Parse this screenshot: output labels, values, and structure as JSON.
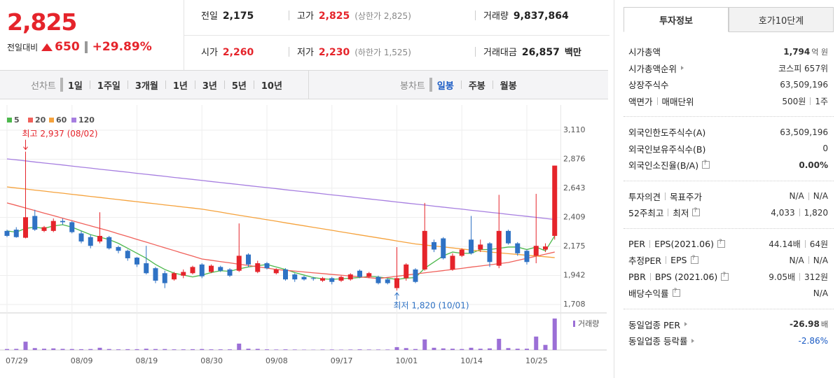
{
  "quote": {
    "price": "2,825",
    "change_label": "전일대비",
    "change": "650",
    "change_rate": "+29.89%",
    "color": "#e5242b"
  },
  "summary": {
    "rows": [
      [
        {
          "label": "전일",
          "value": "2,175"
        },
        {
          "label": "고가",
          "value": "2,825",
          "note": "(상한가 2,825)",
          "color": "#e5242b"
        },
        {
          "label": "거래량",
          "value": "9,837,864"
        }
      ],
      [
        {
          "label": "시가",
          "value": "2,260",
          "color": "#e5242b"
        },
        {
          "label": "저가",
          "value": "2,230",
          "note": "(하한가 1,525)",
          "color": "#e5242b"
        },
        {
          "label": "거래대금",
          "value": "26,857",
          "unit": "백만"
        }
      ]
    ]
  },
  "chart_tabs": {
    "line": {
      "label": "선차트",
      "items": [
        "1일",
        "1주일",
        "3개월",
        "1년",
        "3년",
        "5년",
        "10년"
      ]
    },
    "candle": {
      "label": "봉차트",
      "items": [
        "일봉",
        "주봉",
        "월봉"
      ],
      "selected": 0
    }
  },
  "chart_data": {
    "type": "candlestick",
    "categories": [
      "07/29",
      null,
      null,
      null,
      null,
      null,
      null,
      "08/09",
      null,
      null,
      null,
      null,
      null,
      null,
      "08/19",
      null,
      null,
      null,
      null,
      null,
      null,
      "08/30",
      null,
      null,
      null,
      null,
      null,
      null,
      "09/08",
      null,
      null,
      null,
      null,
      null,
      null,
      "09/17",
      null,
      null,
      null,
      null,
      null,
      null,
      "10/01",
      null,
      null,
      null,
      null,
      null,
      null,
      "10/14",
      null,
      null,
      null,
      null,
      null,
      null,
      "10/25",
      null,
      null,
      null
    ],
    "open": [
      2300,
      2310,
      2245,
      2420,
      2300,
      2300,
      2380,
      2370,
      2280,
      2250,
      2215,
      2250,
      2170,
      2140,
      2085,
      2040,
      2000,
      1960,
      1910,
      1940,
      1960,
      2030,
      1970,
      2010,
      1990,
      1980,
      2110,
      1970,
      2040,
      1960,
      1990,
      1950,
      1930,
      1920,
      1900,
      1920,
      1900,
      1910,
      1980,
      1930,
      1930,
      1910,
      1840,
      1920,
      1990,
      1990,
      2210,
      2240,
      1990,
      2100,
      2230,
      2150,
      2200,
      2020,
      2300,
      2200,
      2140,
      2100,
      2150,
      2260
    ],
    "high": [
      2310,
      2330,
      2937,
      2470,
      2340,
      2400,
      2400,
      2380,
      2300,
      2270,
      2450,
      2260,
      2180,
      2150,
      2090,
      2180,
      2010,
      1980,
      1970,
      1990,
      2020,
      2040,
      2030,
      2020,
      2000,
      2360,
      2120,
      2060,
      2050,
      2000,
      2000,
      1960,
      1940,
      1930,
      1930,
      1930,
      1940,
      1960,
      1990,
      1970,
      1940,
      1920,
      2170,
      2040,
      2000,
      2525,
      2230,
      2250,
      2120,
      2160,
      2420,
      2230,
      2210,
      2590,
      2310,
      2210,
      2150,
      2598,
      2200,
      2825
    ],
    "low": [
      2250,
      2245,
      2240,
      2300,
      2290,
      2290,
      2350,
      2280,
      2200,
      2160,
      2200,
      2150,
      2120,
      2060,
      2010,
      1950,
      1880,
      1840,
      1900,
      1920,
      1950,
      1920,
      1960,
      1970,
      1930,
      1970,
      2010,
      1960,
      1990,
      1950,
      1900,
      1890,
      1900,
      1900,
      1890,
      1870,
      1890,
      1900,
      1920,
      1920,
      1870,
      1870,
      1820,
      1900,
      1880,
      1980,
      2130,
      2070,
      1980,
      2090,
      2110,
      2130,
      2010,
      2000,
      2190,
      2100,
      2030,
      2040,
      2130,
      2230
    ],
    "close": [
      2260,
      2250,
      2410,
      2310,
      2330,
      2380,
      2370,
      2290,
      2215,
      2180,
      2260,
      2160,
      2140,
      2080,
      2030,
      1960,
      1900,
      1880,
      1960,
      1970,
      2010,
      1935,
      2020,
      1980,
      1940,
      2100,
      2030,
      2040,
      2000,
      1990,
      1910,
      1910,
      1910,
      1915,
      1920,
      1890,
      1930,
      1950,
      1930,
      1960,
      1880,
      1880,
      1920,
      2030,
      1890,
      2300,
      2150,
      2080,
      2100,
      2150,
      2120,
      2190,
      2050,
      2300,
      2200,
      2120,
      2050,
      2180,
      2175,
      2825
    ],
    "up_color": "#e5242b",
    "down_color": "#2f72c4",
    "ylim": [
      1652,
      3256
    ],
    "yticks": [
      {
        "value": 3110,
        "label": "3,110"
      },
      {
        "value": 2876,
        "label": "2,876"
      },
      {
        "value": 2643,
        "label": "2,643"
      },
      {
        "value": 2409,
        "label": "2,409"
      },
      {
        "value": 2175,
        "label": "2,175"
      },
      {
        "value": 1942,
        "label": "1,942"
      },
      {
        "value": 1708,
        "label": "1,708"
      }
    ],
    "grid": true,
    "series": [
      {
        "name": "5",
        "color": "#4cb84c",
        "values": [
          2300,
          2290,
          2320,
          2330,
          2320,
          2340,
          2350,
          2330,
          2300,
          2270,
          2250,
          2230,
          2200,
          2160,
          2120,
          2080,
          2030,
          1990,
          1960,
          1945,
          1930,
          1945,
          1965,
          1980,
          1975,
          1995,
          2010,
          2020,
          2030,
          2010,
          1990,
          1965,
          1945,
          1925,
          1915,
          1910,
          1915,
          1920,
          1925,
          1935,
          1930,
          1920,
          1910,
          1920,
          1925,
          2000,
          2050,
          2100,
          2130,
          2120,
          2120,
          2150,
          2150,
          2160,
          2170,
          2170,
          2150,
          2170,
          2140,
          2260
        ]
      },
      {
        "name": "20",
        "color": "#f0605a",
        "values": [
          2525,
          2505,
          2484,
          2464,
          2443,
          2423,
          2402,
          2382,
          2361,
          2341,
          2320,
          2300,
          2277,
          2255,
          2232,
          2210,
          2187,
          2164,
          2142,
          2119,
          2097,
          2074,
          2064,
          2053,
          2043,
          2032,
          2022,
          2011,
          2001,
          1990,
          1983,
          1977,
          1970,
          1963,
          1957,
          1950,
          1944,
          1937,
          1930,
          1924,
          1917,
          1926,
          1935,
          1945,
          1954,
          1963,
          1972,
          1981,
          1990,
          1999,
          2009,
          2018,
          2027,
          2037,
          2046,
          2063,
          2080,
          2096,
          2113,
          2130
        ]
      },
      {
        "name": "60",
        "color": "#f5a23c",
        "values": [
          2654,
          2645,
          2637,
          2628,
          2620,
          2611,
          2603,
          2594,
          2586,
          2577,
          2569,
          2560,
          2552,
          2543,
          2535,
          2526,
          2518,
          2509,
          2501,
          2492,
          2484,
          2475,
          2463,
          2451,
          2438,
          2426,
          2414,
          2402,
          2390,
          2378,
          2365,
          2353,
          2341,
          2329,
          2317,
          2305,
          2292,
          2280,
          2268,
          2256,
          2244,
          2232,
          2219,
          2207,
          2195,
          2187,
          2179,
          2171,
          2163,
          2155,
          2146,
          2138,
          2130,
          2124,
          2117,
          2111,
          2104,
          2098,
          2092,
          2085
        ]
      },
      {
        "name": "120",
        "color": "#a67ee0",
        "values": [
          2879,
          2871,
          2863,
          2854,
          2846,
          2838,
          2830,
          2821,
          2813,
          2805,
          2796,
          2788,
          2780,
          2772,
          2763,
          2755,
          2747,
          2739,
          2730,
          2722,
          2714,
          2706,
          2697,
          2689,
          2681,
          2673,
          2664,
          2656,
          2648,
          2640,
          2631,
          2623,
          2615,
          2607,
          2598,
          2590,
          2582,
          2574,
          2565,
          2557,
          2549,
          2541,
          2532,
          2524,
          2516,
          2508,
          2499,
          2491,
          2483,
          2475,
          2466,
          2458,
          2450,
          2442,
          2433,
          2425,
          2417,
          2409,
          2400,
          2392
        ]
      }
    ],
    "volume": {
      "name": "거래량",
      "color": "#9b6fd6",
      "ylim": [
        0,
        10500000
      ],
      "values": [
        300000,
        350000,
        2600000,
        600000,
        400000,
        500000,
        350000,
        300000,
        250000,
        300000,
        700000,
        300000,
        200000,
        250000,
        250000,
        400000,
        300000,
        300000,
        200000,
        200000,
        250000,
        300000,
        200000,
        200000,
        200000,
        2000000,
        400000,
        350000,
        200000,
        150000,
        200000,
        150000,
        120000,
        100000,
        150000,
        150000,
        120000,
        150000,
        200000,
        150000,
        150000,
        150000,
        900000,
        600000,
        300000,
        3300000,
        700000,
        500000,
        400000,
        300000,
        700000,
        400000,
        500000,
        3500000,
        600000,
        400000,
        400000,
        4200000,
        1600000,
        9837864
      ]
    },
    "annotations": [
      {
        "text": "최고 2,937 (08/02)",
        "value": 2937,
        "field": "high",
        "color": "#e5242b"
      },
      {
        "text": "최저 1,820 (10/01)",
        "value": 1820,
        "field": "low",
        "color": "#2f72c4"
      }
    ]
  },
  "info_panel": {
    "tabs": [
      "투자정보",
      "호가10단계"
    ],
    "selected": 0,
    "groups": [
      [
        {
          "labels": [
            "시가총액"
          ],
          "values": [
            {
              "text": "1,794",
              "unit": "억 원"
            }
          ],
          "bold": true
        },
        {
          "labels": [
            "시가총액순위"
          ],
          "arrow": true,
          "values": [
            "코스피 657위"
          ]
        },
        {
          "labels": [
            "상장주식수"
          ],
          "values": [
            "63,509,196"
          ]
        },
        {
          "labels": [
            "액면가",
            "매매단위"
          ],
          "values": [
            "500원",
            "1주"
          ]
        }
      ],
      [
        {
          "labels": [
            "외국인한도주식수(A)"
          ],
          "values": [
            "63,509,196"
          ]
        },
        {
          "labels": [
            "외국인보유주식수(B)"
          ],
          "values": [
            "0"
          ]
        },
        {
          "labels": [
            "외국인소진율(B/A)"
          ],
          "help": true,
          "values": [
            "0.00%"
          ],
          "bold": true
        }
      ],
      [
        {
          "labels": [
            "투자의견",
            "목표주가"
          ],
          "values": [
            "N/A",
            "N/A"
          ]
        },
        {
          "labels": [
            "52주최고",
            "최저"
          ],
          "help": true,
          "values": [
            "4,033",
            "1,820"
          ]
        }
      ],
      [
        {
          "labels": [
            "PER",
            "EPS(2021.06)"
          ],
          "help": true,
          "values": [
            "44.14배",
            "64원"
          ]
        },
        {
          "labels": [
            "추정PER",
            "EPS"
          ],
          "help": true,
          "values": [
            "N/A",
            "N/A"
          ]
        },
        {
          "labels": [
            "PBR",
            "BPS (2021.06)"
          ],
          "help": true,
          "values": [
            "9.05배",
            "312원"
          ]
        },
        {
          "labels": [
            "배당수익률"
          ],
          "help": true,
          "values": [
            "N/A"
          ]
        }
      ],
      [
        {
          "labels": [
            "동일업종 PER"
          ],
          "arrow": true,
          "values": [
            {
              "text": "-26.98",
              "unit": "배"
            }
          ],
          "bold": true
        },
        {
          "labels": [
            "동일업종 등락률"
          ],
          "arrow": true,
          "values": [
            "-2.86%"
          ],
          "color": "#1a5bc4"
        }
      ]
    ]
  }
}
